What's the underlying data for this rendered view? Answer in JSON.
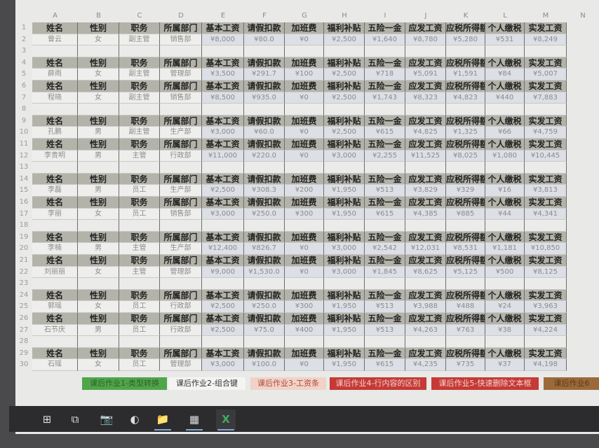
{
  "columns": [
    "A",
    "B",
    "C",
    "D",
    "E",
    "F",
    "G",
    "H",
    "I",
    "J",
    "K",
    "L",
    "M",
    "N"
  ],
  "header_labels": [
    "姓名",
    "性别",
    "职务",
    "所属部门",
    "基本工资",
    "请假扣款",
    "加班费",
    "福利补贴",
    "五险一金",
    "应发工资",
    "应税所得额",
    "个人缴税",
    "实发工资"
  ],
  "header_rows": [
    1,
    4,
    6,
    9,
    11,
    14,
    16,
    19,
    21,
    24,
    26,
    29
  ],
  "blank_rows": [
    3,
    8,
    13,
    18,
    23,
    28
  ],
  "records": [
    {
      "row": 2,
      "values": [
        "曾云",
        "女",
        "副主管",
        "销售部",
        "¥8,000",
        "¥80.0",
        "¥0",
        "¥2,500",
        "¥1,640",
        "¥8,780",
        "¥5,280",
        "¥531",
        "¥8,249"
      ]
    },
    {
      "row": 5,
      "values": [
        "薛雨",
        "女",
        "副主管",
        "管理部",
        "¥3,500",
        "¥291.7",
        "¥100",
        "¥2,500",
        "¥718",
        "¥5,091",
        "¥1,591",
        "¥84",
        "¥5,007"
      ]
    },
    {
      "row": 7,
      "values": [
        "程晓",
        "女",
        "副主管",
        "销售部",
        "¥8,500",
        "¥935.0",
        "¥0",
        "¥2,500",
        "¥1,743",
        "¥8,323",
        "¥4,823",
        "¥440",
        "¥7,883"
      ]
    },
    {
      "row": 10,
      "values": [
        "孔鹏",
        "男",
        "副主管",
        "生产部",
        "¥3,000",
        "¥60.0",
        "¥0",
        "¥2,500",
        "¥615",
        "¥4,825",
        "¥1,325",
        "¥66",
        "¥4,759"
      ]
    },
    {
      "row": 12,
      "values": [
        "李贵明",
        "男",
        "主管",
        "行政部",
        "¥11,000",
        "¥220.0",
        "¥0",
        "¥3,000",
        "¥2,255",
        "¥11,525",
        "¥8,025",
        "¥1,080",
        "¥10,445"
      ]
    },
    {
      "row": 15,
      "values": [
        "李磊",
        "男",
        "员工",
        "生产部",
        "¥2,500",
        "¥308.3",
        "¥200",
        "¥1,950",
        "¥513",
        "¥3,829",
        "¥329",
        "¥16",
        "¥3,813"
      ]
    },
    {
      "row": 17,
      "values": [
        "李丽",
        "女",
        "员工",
        "销售部",
        "¥3,000",
        "¥250.0",
        "¥300",
        "¥1,950",
        "¥615",
        "¥4,385",
        "¥885",
        "¥44",
        "¥4,341"
      ]
    },
    {
      "row": 20,
      "values": [
        "李楠",
        "男",
        "主管",
        "生产部",
        "¥12,400",
        "¥826.7",
        "¥0",
        "¥3,000",
        "¥2,542",
        "¥12,031",
        "¥8,531",
        "¥1,181",
        "¥10,850"
      ]
    },
    {
      "row": 22,
      "values": [
        "刘丽丽",
        "女",
        "主管",
        "管理部",
        "¥9,000",
        "¥1,530.0",
        "¥0",
        "¥3,000",
        "¥1,845",
        "¥8,625",
        "¥5,125",
        "¥500",
        "¥8,125"
      ]
    },
    {
      "row": 25,
      "values": [
        "郭瑶",
        "女",
        "员工",
        "行政部",
        "¥2,500",
        "¥250.0",
        "¥300",
        "¥1,950",
        "¥513",
        "¥3,988",
        "¥488",
        "¥24",
        "¥3,963"
      ]
    },
    {
      "row": 27,
      "values": [
        "石节庆",
        "男",
        "员工",
        "行政部",
        "¥2,500",
        "¥75.0",
        "¥400",
        "¥1,950",
        "¥513",
        "¥4,263",
        "¥763",
        "¥38",
        "¥4,224"
      ]
    },
    {
      "row": 30,
      "values": [
        "石瑶",
        "女",
        "员工",
        "管理部",
        "¥3,000",
        "¥100.0",
        "¥0",
        "¥1,950",
        "¥615",
        "¥4,235",
        "¥735",
        "¥37",
        "¥4,198"
      ]
    }
  ],
  "sheet_tabs": [
    {
      "label": "课后作业1-类型转换",
      "bg": "#4fa64a",
      "fg": "#2e5e2a"
    },
    {
      "label": "课后作业2-组合键",
      "bg": "#f4f4f2",
      "fg": "#333333"
    },
    {
      "label": "课后作业3-工资条",
      "bg": "#f1d2c8",
      "fg": "#b04a3a"
    },
    {
      "label": "课后作业4-行内容的区别",
      "bg": "#c53a36",
      "fg": "#f3d0cc"
    },
    {
      "label": "课后作业5-快速删除文本框",
      "bg": "#c53a36",
      "fg": "#f3d0cc"
    },
    {
      "label": "课后作业6",
      "bg": "#9c6a3a",
      "fg": "#5a3a1a"
    }
  ],
  "taskbar": [
    {
      "icon": "windows-start-icon",
      "glyph": "⊞"
    },
    {
      "icon": "task-view-icon",
      "glyph": "⧉"
    },
    {
      "icon": "camera-icon",
      "glyph": "📷"
    },
    {
      "icon": "browser-icon",
      "glyph": "◐"
    },
    {
      "icon": "file-explorer-icon",
      "glyph": "📁"
    },
    {
      "icon": "winrar-icon",
      "glyph": "▦"
    },
    {
      "icon": "excel-icon",
      "glyph": "X"
    }
  ]
}
